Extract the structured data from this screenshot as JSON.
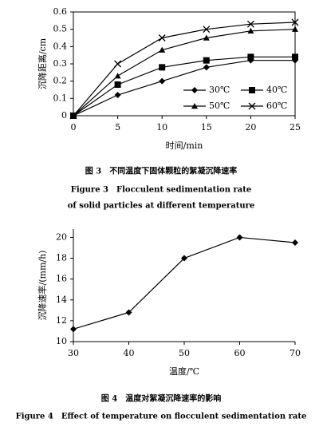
{
  "chart_data": [
    {
      "type": "line",
      "x_label": "时间/min",
      "y_label": "沉降距离/cm",
      "x": [
        0,
        5,
        10,
        15,
        20,
        25
      ],
      "xlim": [
        0,
        25
      ],
      "xticks": [
        0,
        5,
        10,
        15,
        20,
        25
      ],
      "ylim": [
        0,
        0.6
      ],
      "yticks": [
        0,
        0.1,
        0.2,
        0.3,
        0.4,
        0.5,
        0.6
      ],
      "frame": true,
      "series": [
        {
          "name": "30℃",
          "color": "#000000",
          "marker": "diamond",
          "values": [
            0,
            0.12,
            0.2,
            0.28,
            0.32,
            0.32
          ]
        },
        {
          "name": "40℃",
          "color": "#000000",
          "marker": "square",
          "values": [
            0,
            0.18,
            0.28,
            0.32,
            0.34,
            0.34
          ]
        },
        {
          "name": "50℃",
          "color": "#000000",
          "marker": "triangle",
          "values": [
            0,
            0.23,
            0.38,
            0.45,
            0.49,
            0.5
          ]
        },
        {
          "name": "60℃",
          "color": "#000000",
          "marker": "x",
          "values": [
            0,
            0.3,
            0.45,
            0.5,
            0.53,
            0.54
          ]
        }
      ],
      "legend": "lower right",
      "caption": [
        "图 3　不同温度下固体颗粒的絮凝沉降速率",
        "Figure 3　Flocculent sedimentation rate",
        "of solid particles at different temperature"
      ]
    },
    {
      "type": "line",
      "x_label": "温度/℃",
      "y_label": "沉降速率/(mm/h)",
      "x": [
        30,
        40,
        50,
        60,
        70
      ],
      "xlim": [
        30,
        70
      ],
      "xticks": [
        30,
        40,
        50,
        60,
        70
      ],
      "ylim": [
        10,
        20.8
      ],
      "yticks": [
        10,
        12,
        14,
        16,
        18,
        20
      ],
      "frame": false,
      "series": [
        {
          "color": "#000000",
          "marker": "diamond",
          "values": [
            11.2,
            12.8,
            18,
            20,
            19.5
          ]
        }
      ],
      "caption": [
        "图 4　温度对絮凝沉降速率的影响",
        "Figure 4　Effect of temperature on flocculent sedimentation rate"
      ]
    }
  ]
}
